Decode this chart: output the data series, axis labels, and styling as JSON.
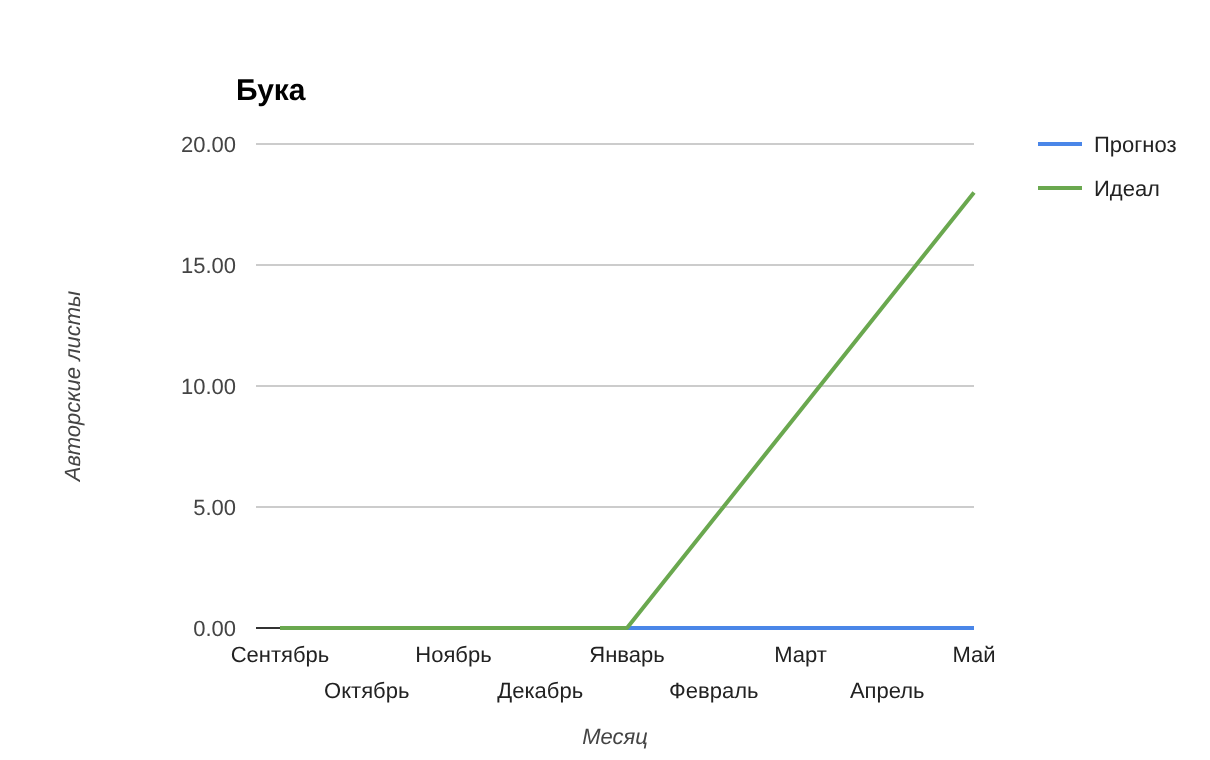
{
  "chart_data": {
    "type": "line",
    "title": "Бука",
    "xlabel": "Месяц",
    "ylabel": "Авторские листы",
    "categories": [
      "Сентябрь",
      "Октябрь",
      "Ноябрь",
      "Декабрь",
      "Январь",
      "Февраль",
      "Март",
      "Апрель",
      "Май"
    ],
    "series": [
      {
        "name": "Прогноз",
        "color": "#4a86e8",
        "values": [
          null,
          null,
          null,
          null,
          0,
          0,
          0,
          0,
          0
        ]
      },
      {
        "name": "Идеал",
        "color": "#6aa84f",
        "values": [
          0,
          0,
          0,
          0,
          0,
          4.5,
          9,
          13.5,
          18
        ]
      }
    ],
    "ylim": [
      0,
      20
    ],
    "yticks": [
      {
        "value": 0,
        "label": "0.00"
      },
      {
        "value": 5,
        "label": "5.00"
      },
      {
        "value": 10,
        "label": "10.00"
      },
      {
        "value": 15,
        "label": "15.00"
      },
      {
        "value": 20,
        "label": "20.00"
      }
    ],
    "grid": "y",
    "legend": "top right",
    "marker": "none",
    "line_style": "solid"
  }
}
